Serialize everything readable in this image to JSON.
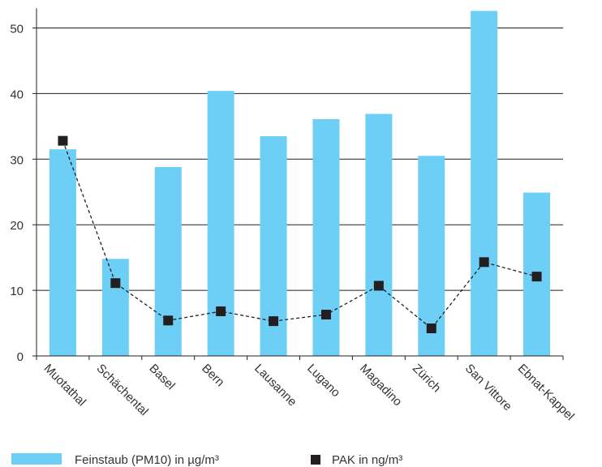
{
  "chart_data": {
    "type": "bar",
    "categories": [
      "Muotathal",
      "Schächental",
      "Basel",
      "Bern",
      "Lausanne",
      "Lugano",
      "Magadino",
      "Zürich",
      "San Vittore",
      "Ebnat-Kappel"
    ],
    "series": [
      {
        "name": "Feinstaub (PM10) in µg/m³",
        "kind": "bar",
        "color": "#6dcff6",
        "values": [
          31.5,
          14.8,
          28.8,
          40.4,
          33.5,
          36.1,
          36.9,
          30.5,
          52.6,
          24.9
        ]
      },
      {
        "name": "PAK in ng/m³",
        "kind": "line-marker",
        "color": "#231f20",
        "values": [
          32.8,
          11.1,
          5.4,
          6.8,
          5.3,
          6.3,
          10.7,
          4.2,
          14.3,
          12.1
        ]
      }
    ],
    "yticks": [
      0,
      10,
      20,
      30,
      40,
      50
    ],
    "ylim": [
      0,
      53
    ],
    "grid": true,
    "legend_position": "bottom"
  }
}
